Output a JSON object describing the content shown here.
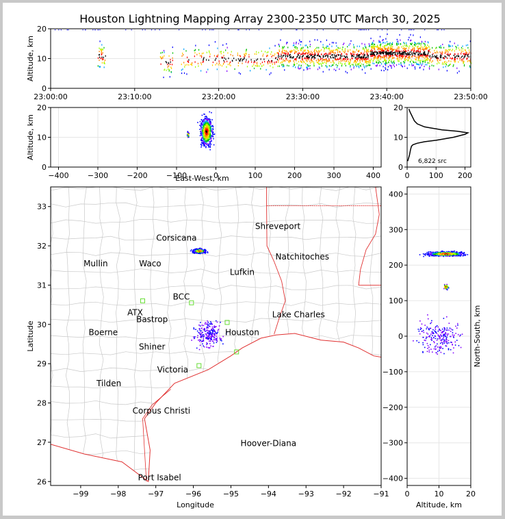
{
  "title": "Houston Lightning Mapping Array 2300-2350 UTC March 30, 2025",
  "source_count": "6,822 src",
  "chart_data": [
    {
      "type": "scatter",
      "panel": "altitude-time",
      "xlabel": "",
      "ylabel": "Altitude, km",
      "x_ticks": [
        "23:00:00",
        "23:10:00",
        "23:20:00",
        "23:30:00",
        "23:40:00",
        "23:50:00"
      ],
      "xlim": [
        "23:00:00",
        "23:50:00"
      ],
      "ylim": [
        0,
        20
      ],
      "y_ticks": [
        0,
        10,
        20
      ],
      "grid": true,
      "bands": [
        {
          "t_start": "23:05:30",
          "t_end": "23:06:30",
          "alt_center": 11,
          "density": "low"
        },
        {
          "t_start": "23:13:00",
          "t_end": "23:14:30",
          "alt_center": 9,
          "density": "low"
        },
        {
          "t_start": "23:15:30",
          "t_end": "23:27:00",
          "alt_center": 10,
          "density": "medium"
        },
        {
          "t_start": "23:27:00",
          "t_end": "23:38:00",
          "alt_center": 11,
          "density": "high"
        },
        {
          "t_start": "23:38:00",
          "t_end": "23:45:00",
          "alt_center": 12,
          "density": "high"
        },
        {
          "t_start": "23:45:00",
          "t_end": "23:50:00",
          "alt_center": 11,
          "density": "medium"
        }
      ]
    },
    {
      "type": "scatter",
      "panel": "altitude-eastwest",
      "xlabel": "East-West, km",
      "ylabel": "Altitude, km",
      "xlim": [
        -420,
        420
      ],
      "x_ticks": [
        -400,
        -300,
        -200,
        -100,
        0,
        100,
        200,
        300,
        400
      ],
      "ylim": [
        0,
        20
      ],
      "y_ticks": [
        0,
        10,
        20
      ],
      "grid": true,
      "clusters": [
        {
          "x_center": -25,
          "x_spread": 15,
          "alt_center": 12,
          "alt_spread": 5,
          "density": "high"
        },
        {
          "x_center": -72,
          "x_spread": 2,
          "alt_center": 11,
          "alt_spread": 1,
          "density": "low"
        }
      ]
    },
    {
      "type": "line",
      "panel": "altitude-histogram",
      "xlabel": "",
      "ylabel": "",
      "xlim": [
        0,
        220
      ],
      "x_ticks": [
        0,
        100,
        200
      ],
      "ylim": [
        0,
        20
      ],
      "y_ticks": [
        0,
        10,
        20
      ],
      "grid": true,
      "x": [
        2,
        5,
        8,
        10,
        12,
        15,
        20,
        35,
        60,
        100,
        160,
        200,
        210,
        175,
        120,
        60,
        35,
        25,
        20,
        15,
        10,
        8,
        6
      ],
      "y": [
        2,
        3,
        4,
        5,
        6,
        7,
        7.5,
        8,
        8.5,
        9,
        10,
        11,
        11.5,
        12,
        12.5,
        13.5,
        14.5,
        15.5,
        16.5,
        17.5,
        18.5,
        19,
        19.5
      ]
    },
    {
      "type": "scatter",
      "panel": "plan-view",
      "xlabel": "Longitude",
      "ylabel": "Latitude",
      "xlim": [
        -99.8,
        -91
      ],
      "x_ticks": [
        -99,
        -98,
        -97,
        -96,
        -95,
        -94,
        -93,
        -92,
        -91
      ],
      "ylim": [
        25.9,
        33.5
      ],
      "y_ticks": [
        26,
        27,
        28,
        29,
        30,
        31,
        32,
        33
      ],
      "cities": [
        {
          "name": "Shreveport",
          "lon": -93.75,
          "lat": 32.5,
          "color": "#000000"
        },
        {
          "name": "Corsicana",
          "lon": -96.45,
          "lat": 32.2,
          "color": "#000000"
        },
        {
          "name": "Mullin",
          "lon": -98.6,
          "lat": 31.55,
          "color": "#ff8c3c"
        },
        {
          "name": "Waco",
          "lon": -97.15,
          "lat": 31.55,
          "color": "#000000"
        },
        {
          "name": "Natchitoches",
          "lon": -93.1,
          "lat": 31.72,
          "color": "#000000"
        },
        {
          "name": "Lufkin",
          "lon": -94.7,
          "lat": 31.33,
          "color": "#000000"
        },
        {
          "name": "BCC",
          "lon": -96.32,
          "lat": 30.7,
          "color": "#000000"
        },
        {
          "name": "ATX",
          "lon": -97.55,
          "lat": 30.3,
          "color": "#ff8c3c"
        },
        {
          "name": "Bastrop",
          "lon": -97.1,
          "lat": 30.13,
          "color": "#000000"
        },
        {
          "name": "Lake Charles",
          "lon": -93.2,
          "lat": 30.25,
          "color": "#000000"
        },
        {
          "name": "Boerne",
          "lon": -98.4,
          "lat": 29.8,
          "color": "#000000"
        },
        {
          "name": "Houston",
          "lon": -94.7,
          "lat": 29.8,
          "color": "#ffa500"
        },
        {
          "name": "Shiner",
          "lon": -97.1,
          "lat": 29.43,
          "color": "#000000"
        },
        {
          "name": "Victoria",
          "lon": -96.55,
          "lat": 28.85,
          "color": "#000000"
        },
        {
          "name": "Tilden",
          "lon": -98.25,
          "lat": 28.5,
          "color": "#000000"
        },
        {
          "name": "Corpus Christi",
          "lon": -96.85,
          "lat": 27.8,
          "color": "#000000"
        },
        {
          "name": "Hoover-Diana",
          "lon": -94.0,
          "lat": 26.97,
          "color": "#0000ff"
        },
        {
          "name": "Port Isabel",
          "lon": -96.9,
          "lat": 26.1,
          "color": "#000000"
        }
      ],
      "clusters": [
        {
          "lon": -95.85,
          "lat": 31.88,
          "lon_spread": 0.15,
          "lat_spread": 0.05,
          "density": "high"
        },
        {
          "lon": -95.6,
          "lat": 29.75,
          "lon_spread": 0.35,
          "lat_spread": 0.3,
          "density": "medium"
        }
      ],
      "stations": [
        {
          "lon": -97.35,
          "lat": 30.6
        },
        {
          "lon": -95.1,
          "lat": 30.05
        },
        {
          "lon": -94.85,
          "lat": 29.3
        },
        {
          "lon": -95.85,
          "lat": 28.95
        },
        {
          "lon": -96.05,
          "lat": 30.55
        }
      ]
    },
    {
      "type": "scatter",
      "panel": "altitude-northsouth",
      "xlabel": "Altitude, km",
      "ylabel": "North-South, km",
      "xlim": [
        0,
        20
      ],
      "x_ticks": [
        0,
        10,
        20
      ],
      "ylim": [
        -420,
        420
      ],
      "y_ticks": [
        -400,
        -300,
        -200,
        -100,
        0,
        100,
        200,
        300,
        400
      ],
      "grid": true,
      "clusters": [
        {
          "alt_center": 12,
          "alt_spread": 6,
          "ns_center": 233,
          "ns_spread": 6,
          "density": "high"
        },
        {
          "alt_center": 12,
          "alt_spread": 1,
          "ns_center": 140,
          "ns_spread": 8,
          "density": "low"
        },
        {
          "alt_center": 10,
          "alt_spread": 7,
          "ns_center": 0,
          "ns_spread": 45,
          "density": "medium"
        }
      ]
    }
  ]
}
